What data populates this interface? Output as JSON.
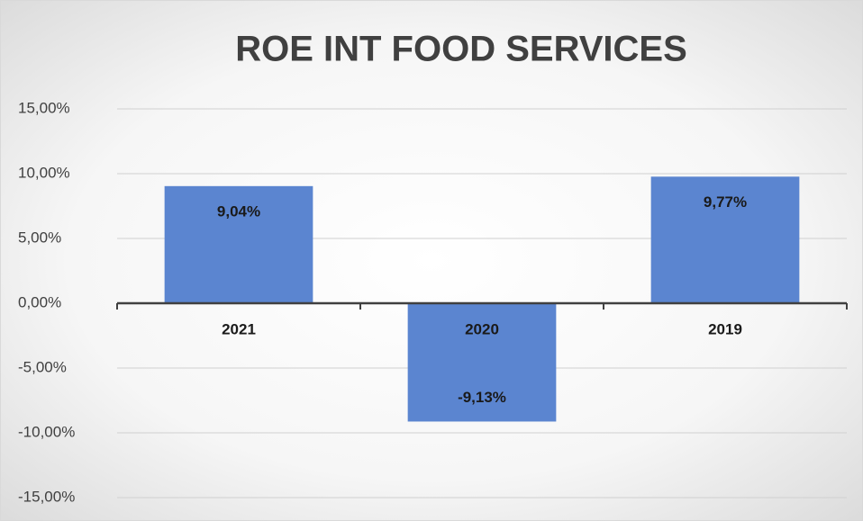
{
  "chart_data": {
    "type": "bar",
    "title": "ROE INT FOOD SERVICES",
    "categories": [
      "2021",
      "2020",
      "2019"
    ],
    "values": [
      9.04,
      -9.13,
      9.77
    ],
    "value_labels": [
      "9,04%",
      "-9,13%",
      "9,77%"
    ],
    "color": "#5b85d0",
    "ylim": [
      -15,
      15
    ],
    "yticks": [
      {
        "value": -15,
        "label": "-15,00%"
      },
      {
        "value": -10,
        "label": "-10,00%"
      },
      {
        "value": -5,
        "label": "-5,00%"
      },
      {
        "value": 0,
        "label": "0,00%"
      },
      {
        "value": 5,
        "label": "5,00%"
      },
      {
        "value": 10,
        "label": "10,00%"
      },
      {
        "value": 15,
        "label": "15,00%"
      }
    ],
    "grid": true
  }
}
